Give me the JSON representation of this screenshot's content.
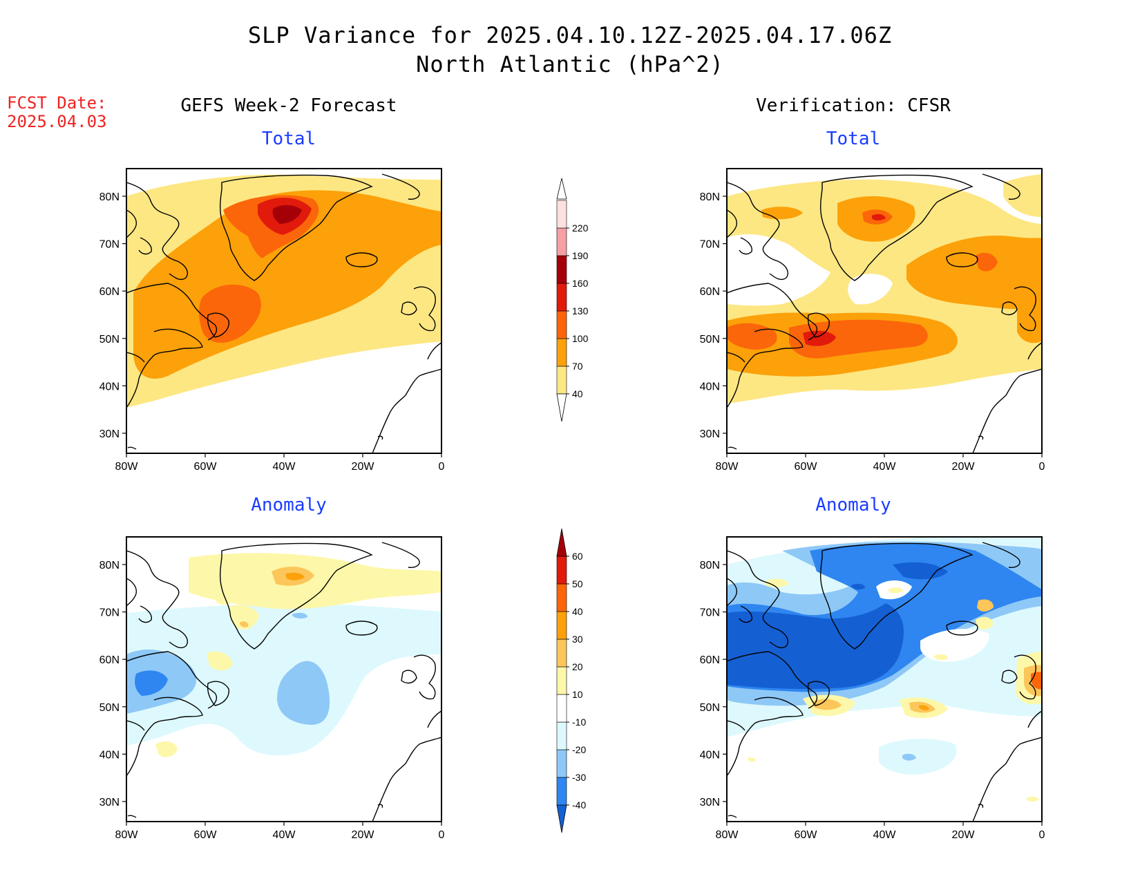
{
  "header": {
    "title_line1": "SLP Variance for 2025.04.10.12Z-2025.04.17.06Z",
    "title_line2": "North Atlantic (hPa^2)",
    "fcst_label": "FCST Date:",
    "fcst_date": "2025.04.03"
  },
  "left_column_title": "GEFS Week-2 Forecast",
  "right_column_title": "Verification: CFSR",
  "top_subtitle": "Total",
  "bottom_subtitle": "Anomaly",
  "map_axes": {
    "lat_labels": [
      "30N",
      "40N",
      "50N",
      "60N",
      "70N",
      "80N"
    ],
    "lon_labels": [
      "80W",
      "60W",
      "40W",
      "20W",
      "0"
    ]
  },
  "colorbar_total": {
    "levels": [
      "40",
      "70",
      "100",
      "130",
      "160",
      "190",
      "220"
    ],
    "colors": [
      "#fde783",
      "#fca10a",
      "#fb660a",
      "#e11a0c",
      "#a50008",
      "#f4a0a4",
      "#fde0e0"
    ]
  },
  "colorbar_anomaly": {
    "levels": [
      "-40",
      "-30",
      "-20",
      "-10",
      "10",
      "20",
      "30",
      "40",
      "50",
      "60"
    ],
    "colors": [
      "#1460d3",
      "#2f86f0",
      "#8ec8f7",
      "#def9fd",
      "#ffffff",
      "#fdf7a9",
      "#fcc65a",
      "#fca10a",
      "#fb660a",
      "#e11a0c",
      "#a50008"
    ]
  }
}
